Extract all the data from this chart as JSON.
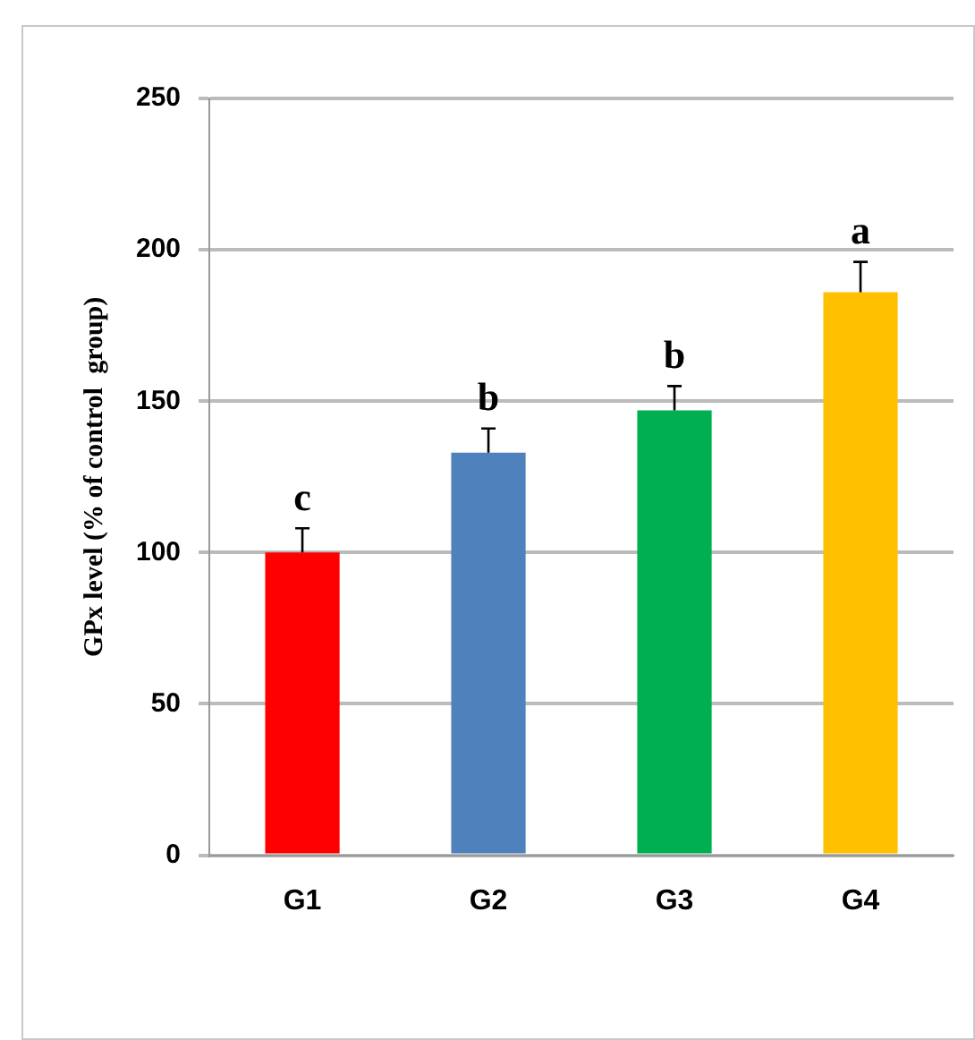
{
  "chart_data": {
    "type": "bar",
    "ylabel": "GPx level (% of control  group)",
    "categories": [
      "G1",
      "G2",
      "G3",
      "G4"
    ],
    "values": [
      100,
      133,
      147,
      186
    ],
    "colors": [
      "#ff0000",
      "#4f81bd",
      "#00b050",
      "#ffc000"
    ],
    "errors": [
      8,
      8,
      8,
      10
    ],
    "annotations": [
      {
        "text": "c",
        "x": "G1",
        "y": 108
      },
      {
        "text": "b",
        "x": "G2",
        "y": 141
      },
      {
        "text": "b",
        "x": "G3",
        "y": 155
      },
      {
        "text": "a",
        "x": "G4",
        "y": 196
      }
    ],
    "ylim": [
      0,
      250
    ],
    "yticks": [
      0,
      50,
      100,
      150,
      200,
      250
    ],
    "grid": "y"
  }
}
